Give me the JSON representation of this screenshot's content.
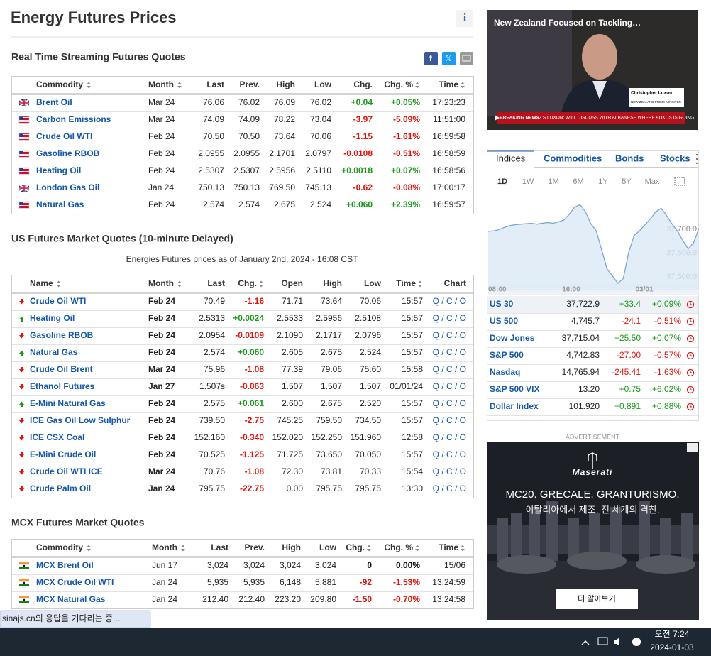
{
  "header": {
    "title": "Energy Futures Prices"
  },
  "realtime": {
    "title": "Real Time Streaming Futures Quotes",
    "columns": [
      "Commodity",
      "Month",
      "Last",
      "Prev.",
      "High",
      "Low",
      "Chg.",
      "Chg. %",
      "Time"
    ],
    "rows": [
      {
        "flag": "uk",
        "cells": [
          "Brent Oil",
          "Mar 24",
          "76.06",
          "76.02",
          "76.09",
          "76.02",
          "+0.04",
          "+0.05%",
          "17:23:23"
        ]
      },
      {
        "flag": "us",
        "cells": [
          "Carbon Emissions",
          "Mar 24",
          "74.09",
          "74.09",
          "78.22",
          "73.04",
          "-3.97",
          "-5.09%",
          "11:51:00"
        ]
      },
      {
        "flag": "us",
        "cells": [
          "Crude Oil WTI",
          "Feb 24",
          "70.50",
          "70.50",
          "73.64",
          "70.06",
          "-1.15",
          "-1.61%",
          "16:59:58"
        ]
      },
      {
        "flag": "us",
        "cells": [
          "Gasoline RBOB",
          "Feb 24",
          "2.0955",
          "2.0955",
          "2.1701",
          "2.0797",
          "-0.0108",
          "-0.51%",
          "16:58:59"
        ]
      },
      {
        "flag": "us",
        "cells": [
          "Heating Oil",
          "Feb 24",
          "2.5307",
          "2.5307",
          "2.5956",
          "2.5110",
          "+0.0018",
          "+0.07%",
          "16:58:56"
        ]
      },
      {
        "flag": "uk",
        "cells": [
          "London Gas Oil",
          "Jan 24",
          "750.13",
          "750.13",
          "769.50",
          "745.13",
          "-0.62",
          "-0.08%",
          "17:00:17"
        ]
      },
      {
        "flag": "us",
        "cells": [
          "Natural Gas",
          "Feb 24",
          "2.574",
          "2.574",
          "2.675",
          "2.524",
          "+0.060",
          "+2.39%",
          "16:59:57"
        ]
      }
    ]
  },
  "us": {
    "title": "US Futures Market Quotes (10-minute Delayed)",
    "subtitle": "Energies Futures prices as of January 2nd, 2024 - 16:08 CST",
    "columns": [
      "Name",
      "Month",
      "Last",
      "Chg.",
      "Open",
      "High",
      "Low",
      "Time",
      "Chart"
    ],
    "chart_links": "Q / C / O",
    "rows": [
      {
        "trend": "down",
        "cells": [
          "Crude Oil WTI",
          "Feb 24",
          "70.49",
          "-1.16",
          "71.71",
          "73.64",
          "70.06",
          "15:57"
        ]
      },
      {
        "trend": "up",
        "cells": [
          "Heating Oil",
          "Feb 24",
          "2.5313",
          "+0.0024",
          "2.5533",
          "2.5956",
          "2.5108",
          "15:57"
        ]
      },
      {
        "trend": "down",
        "cells": [
          "Gasoline RBOB",
          "Feb 24",
          "2.0954",
          "-0.0109",
          "2.1090",
          "2.1717",
          "2.0796",
          "15:57"
        ]
      },
      {
        "trend": "up",
        "cells": [
          "Natural Gas",
          "Feb 24",
          "2.574",
          "+0.060",
          "2.605",
          "2.675",
          "2.524",
          "15:57"
        ]
      },
      {
        "trend": "down",
        "cells": [
          "Crude Oil Brent",
          "Mar 24",
          "75.96",
          "-1.08",
          "77.39",
          "79.06",
          "75.60",
          "15:58"
        ]
      },
      {
        "trend": "down",
        "cells": [
          "Ethanol Futures",
          "Jan 27",
          "1.507s",
          "-0.063",
          "1.507",
          "1.507",
          "1.507",
          "01/01/24"
        ]
      },
      {
        "trend": "up",
        "cells": [
          "E-Mini Natural Gas",
          "Feb 24",
          "2.575",
          "+0.061",
          "2.600",
          "2.675",
          "2.520",
          "15:57"
        ]
      },
      {
        "trend": "down",
        "cells": [
          "ICE Gas Oil Low Sulphur",
          "Feb 24",
          "739.50",
          "-2.75",
          "745.25",
          "759.50",
          "734.50",
          "15:57"
        ]
      },
      {
        "trend": "down",
        "cells": [
          "ICE CSX Coal",
          "Feb 24",
          "152.160",
          "-0.340",
          "152.020",
          "152.250",
          "151.960",
          "12:58"
        ]
      },
      {
        "trend": "down",
        "cells": [
          "E-Mini Crude Oil",
          "Feb 24",
          "70.525",
          "-1.125",
          "71.725",
          "73.650",
          "70.050",
          "15:57"
        ]
      },
      {
        "trend": "down",
        "cells": [
          "Crude Oil WTI ICE",
          "Mar 24",
          "70.76",
          "-1.08",
          "72.30",
          "73.81",
          "70.33",
          "15:54"
        ]
      },
      {
        "trend": "down",
        "cells": [
          "Crude Palm Oil",
          "Jan 24",
          "795.75",
          "-22.75",
          "0.00",
          "795.75",
          "795.75",
          "13:30"
        ]
      }
    ]
  },
  "mcx": {
    "title": "MCX Futures Market Quotes",
    "columns": [
      "Commodity",
      "Month",
      "Last",
      "Prev.",
      "High",
      "Low",
      "Chg.",
      "Chg. %",
      "Time"
    ],
    "rows": [
      {
        "flag": "in",
        "cells": [
          "MCX Brent Oil",
          "Jun 17",
          "3,024",
          "3,024",
          "3,024",
          "3,024",
          "0",
          "0.00%",
          "15/06"
        ]
      },
      {
        "flag": "in",
        "cells": [
          "MCX Crude Oil WTI",
          "Jan 24",
          "5,935",
          "5,935",
          "6,148",
          "5,881",
          "-92",
          "-1.53%",
          "13:24:59"
        ]
      },
      {
        "flag": "in",
        "cells": [
          "MCX Natural Gas",
          "Jan 24",
          "212.40",
          "212.40",
          "223.20",
          "209.80",
          "-1.50",
          "-0.70%",
          "13:24:58"
        ]
      }
    ]
  },
  "video": {
    "headline": "New Zealand Focused on Tackling…",
    "name": "Christopher Luxon",
    "role": "NEW ZEALAND PRIME MINISTER",
    "breaking": "BREAKING NEWS",
    "ticker": "NZ'S LUXON: WILL DISCUSS WITH ALBANESE WHERE AUKUS IS GOING"
  },
  "indices": {
    "tabs": [
      "Indices",
      "Commodities",
      "Bonds",
      "Stocks"
    ],
    "ranges": [
      "1D",
      "1W",
      "1M",
      "6M",
      "1Y",
      "5Y",
      "Max"
    ],
    "chart": {
      "x_labels": [
        "08:00",
        "16:00",
        "03/01"
      ],
      "yticks": [
        {
          "value": 37700,
          "label": "37,700.0"
        },
        {
          "value": 37600,
          "label": "37,600.0"
        },
        {
          "value": 37500,
          "label": "37,500.0"
        }
      ],
      "ylim": [
        37443,
        37810
      ],
      "values": [
        37688,
        37690,
        37695,
        37705,
        37712,
        37716,
        37718,
        37720,
        37722,
        37718,
        37722,
        37725,
        37722,
        37728,
        37735,
        37760,
        37790,
        37800,
        37770,
        37720,
        37690,
        37610,
        37530,
        37500,
        37470,
        37490,
        37600,
        37670,
        37690,
        37715,
        37740,
        37770,
        37785,
        37755,
        37720,
        37690,
        37650,
        37615,
        37640,
        37700
      ]
    },
    "rows": [
      {
        "name": "US 30",
        "value": "37,722.9",
        "chg": "+33.4",
        "pct": "+0.09%"
      },
      {
        "name": "US 500",
        "value": "4,745.7",
        "chg": "-24.1",
        "pct": "-0.51%"
      },
      {
        "name": "Dow Jones",
        "value": "37,715.04",
        "chg": "+25.50",
        "pct": "+0.07%"
      },
      {
        "name": "S&P 500",
        "value": "4,742.83",
        "chg": "-27.00",
        "pct": "-0.57%"
      },
      {
        "name": "Nasdaq",
        "value": "14,765.94",
        "chg": "-245.41",
        "pct": "-1.63%"
      },
      {
        "name": "S&P 500 VIX",
        "value": "13.20",
        "chg": "+0.75",
        "pct": "+6.02%"
      },
      {
        "name": "Dollar Index",
        "value": "101.920",
        "chg": "+0.891",
        "pct": "+0.88%"
      }
    ]
  },
  "ad": {
    "label": "ADVERTISEMENT",
    "brand": "Maserati",
    "headline": "MC20. GRECALE. GRANTURISMO.",
    "subline": "이탈리아에서 제조. 전 세계의 격찬.",
    "button": "더 알아보기"
  },
  "status": "sinajs.cn의 응답을 기다리는 중...",
  "taskbar": {
    "time": "오전 7:24",
    "date": "2024-01-03"
  }
}
